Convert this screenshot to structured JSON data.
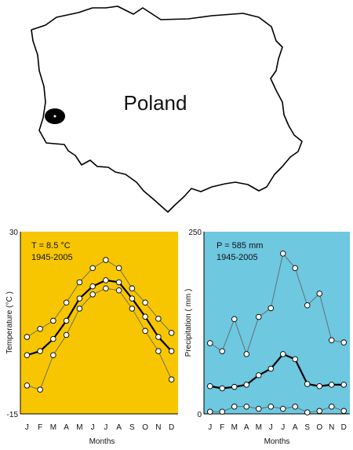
{
  "map": {
    "country_label": "Poland"
  },
  "chart_data": [
    {
      "type": "line",
      "background": "#f7c600",
      "annotation_line1": "T = 8.5 °C",
      "annotation_line2": "1945-2005",
      "xlabel": "Months",
      "ylabel": "Temperature (°C )",
      "ylim": [
        -15,
        30
      ],
      "ytick_labels": [
        "30",
        "-15"
      ],
      "categories": [
        "J",
        "F",
        "M",
        "A",
        "M",
        "J",
        "J",
        "A",
        "S",
        "O",
        "N",
        "D"
      ],
      "series": [
        {
          "role": "max",
          "values": [
            4.0,
            6.0,
            8.0,
            12.5,
            17.5,
            21.0,
            23.0,
            21.0,
            16.0,
            12.5,
            8.5,
            5.0
          ]
        },
        {
          "role": "mean",
          "values": [
            -0.5,
            0.5,
            3.5,
            8.0,
            13.5,
            16.5,
            18.0,
            17.5,
            13.5,
            9.0,
            4.0,
            0.5
          ]
        },
        {
          "role": "min",
          "values": [
            -8.0,
            -9.0,
            -0.5,
            4.5,
            11.0,
            14.5,
            16.0,
            15.5,
            11.0,
            5.5,
            0.5,
            -6.5
          ]
        }
      ],
      "style": {
        "mean_line_color": "#000000",
        "extreme_line_color": "#666666",
        "marker_fill": "#ffffff"
      }
    },
    {
      "type": "line",
      "background": "#6dc8e0",
      "annotation_line1": "P = 585 mm",
      "annotation_line2": "1945-2005",
      "xlabel": "Months",
      "ylabel": "Precipitation ( mm )",
      "ylim": [
        0,
        250
      ],
      "ytick_labels": [
        "250",
        "0"
      ],
      "categories": [
        "J",
        "F",
        "M",
        "A",
        "M",
        "J",
        "J",
        "A",
        "S",
        "O",
        "N",
        "D"
      ],
      "series": [
        {
          "role": "max",
          "values": [
            97,
            86,
            130,
            82,
            133,
            145,
            220,
            200,
            149,
            165,
            101,
            98
          ]
        },
        {
          "role": "mean",
          "values": [
            38,
            35,
            37,
            40,
            53,
            62,
            82,
            75,
            41,
            38,
            40,
            40
          ]
        },
        {
          "role": "min",
          "values": [
            3,
            3,
            10,
            10,
            7,
            10,
            7,
            10,
            2,
            4,
            10,
            4
          ]
        }
      ],
      "style": {
        "mean_line_color": "#000000",
        "extreme_line_color": "#666666",
        "marker_fill": "#ffffff"
      }
    }
  ]
}
